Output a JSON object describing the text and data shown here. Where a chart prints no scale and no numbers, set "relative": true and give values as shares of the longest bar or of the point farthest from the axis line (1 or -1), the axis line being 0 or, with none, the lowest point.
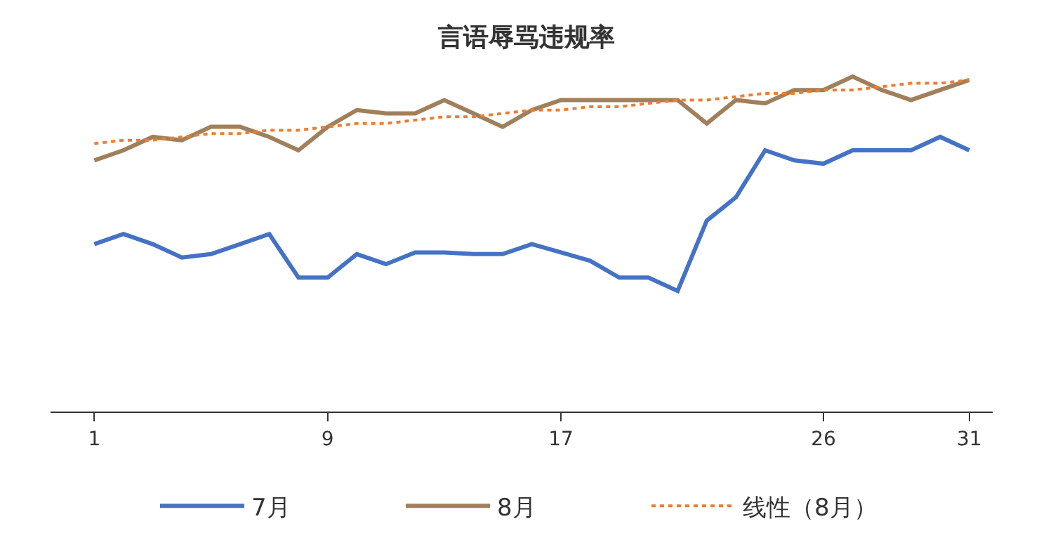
{
  "chart_data": {
    "type": "line",
    "title": "言语辱骂违规率",
    "relative": true,
    "categories": [
      "1",
      null,
      null,
      null,
      null,
      null,
      null,
      null,
      "9",
      null,
      null,
      null,
      null,
      null,
      null,
      null,
      "17",
      null,
      null,
      null,
      null,
      null,
      null,
      null,
      null,
      "26",
      null,
      null,
      null,
      null,
      "31"
    ],
    "series": [
      {
        "name": "7月",
        "color": "#4472c4",
        "values": [
          0.5,
          0.53,
          0.5,
          0.46,
          0.47,
          0.5,
          0.53,
          0.4,
          0.4,
          0.47,
          0.44,
          0.475,
          0.475,
          0.47,
          0.47,
          0.5,
          0.475,
          0.45,
          0.4,
          0.4,
          0.36,
          0.57,
          0.64,
          0.78,
          0.75,
          0.74,
          0.78,
          0.78,
          0.78,
          0.82,
          0.78
        ]
      },
      {
        "name": "8月",
        "color": "#a0805a",
        "values": [
          0.75,
          0.78,
          0.82,
          0.81,
          0.85,
          0.85,
          0.82,
          0.78,
          0.85,
          0.9,
          0.89,
          0.89,
          0.93,
          0.89,
          0.85,
          0.9,
          0.93,
          0.93,
          0.93,
          0.93,
          0.93,
          0.86,
          0.93,
          0.92,
          0.96,
          0.96,
          1.0,
          0.96,
          0.93,
          0.96,
          0.99
        ]
      },
      {
        "name": "线性（8月）",
        "color": "#ed7d31",
        "line_style": "dotted",
        "values": [
          0.8,
          0.81,
          0.81,
          0.82,
          0.83,
          0.83,
          0.84,
          0.84,
          0.85,
          0.86,
          0.86,
          0.87,
          0.88,
          0.88,
          0.89,
          0.9,
          0.9,
          0.91,
          0.91,
          0.92,
          0.93,
          0.93,
          0.94,
          0.95,
          0.95,
          0.96,
          0.96,
          0.97,
          0.98,
          0.98,
          0.99
        ]
      }
    ],
    "legend": "bottom"
  }
}
